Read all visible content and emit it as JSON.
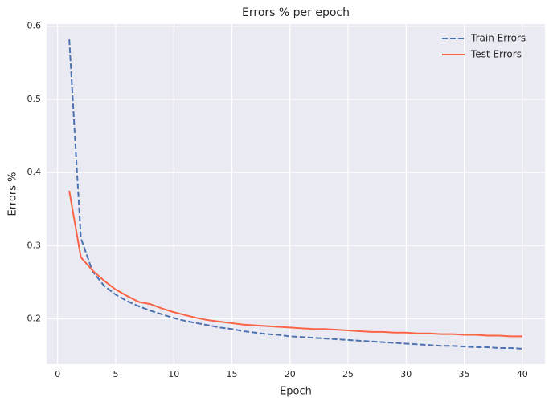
{
  "chart_data": {
    "type": "line",
    "title": "Errors % per epoch",
    "xlabel": "Epoch",
    "ylabel": "Errors %",
    "x": [
      1,
      2,
      3,
      4,
      5,
      6,
      7,
      8,
      9,
      10,
      11,
      12,
      13,
      14,
      15,
      16,
      17,
      18,
      19,
      20,
      21,
      22,
      23,
      24,
      25,
      26,
      27,
      28,
      29,
      30,
      31,
      32,
      33,
      34,
      35,
      36,
      37,
      38,
      39,
      40
    ],
    "series": [
      {
        "name": "Train Errors",
        "color": "#4c72b0",
        "linestyle": "dashed",
        "values": [
          0.582,
          0.31,
          0.265,
          0.245,
          0.233,
          0.224,
          0.217,
          0.211,
          0.206,
          0.201,
          0.197,
          0.194,
          0.191,
          0.188,
          0.186,
          0.183,
          0.181,
          0.179,
          0.178,
          0.176,
          0.175,
          0.174,
          0.173,
          0.172,
          0.171,
          0.17,
          0.169,
          0.168,
          0.167,
          0.166,
          0.165,
          0.164,
          0.163,
          0.163,
          0.162,
          0.161,
          0.161,
          0.16,
          0.16,
          0.159
        ]
      },
      {
        "name": "Test Errors",
        "color": "#fa6446",
        "linestyle": "solid",
        "values": [
          0.375,
          0.284,
          0.266,
          0.252,
          0.24,
          0.231,
          0.223,
          0.22,
          0.214,
          0.209,
          0.205,
          0.201,
          0.198,
          0.196,
          0.194,
          0.192,
          0.191,
          0.19,
          0.189,
          0.188,
          0.187,
          0.186,
          0.186,
          0.185,
          0.184,
          0.183,
          0.182,
          0.182,
          0.181,
          0.181,
          0.18,
          0.18,
          0.179,
          0.179,
          0.178,
          0.178,
          0.177,
          0.177,
          0.176,
          0.176
        ]
      }
    ],
    "xlim": [
      -0.95,
      41.95
    ],
    "xticks": [
      0,
      5,
      10,
      15,
      20,
      25,
      30,
      35,
      40
    ],
    "ylim": [
      0.138,
      0.603
    ],
    "yticks": [
      0.2,
      0.3,
      0.4,
      0.5,
      0.6
    ],
    "grid": true,
    "legend": "upper right"
  }
}
